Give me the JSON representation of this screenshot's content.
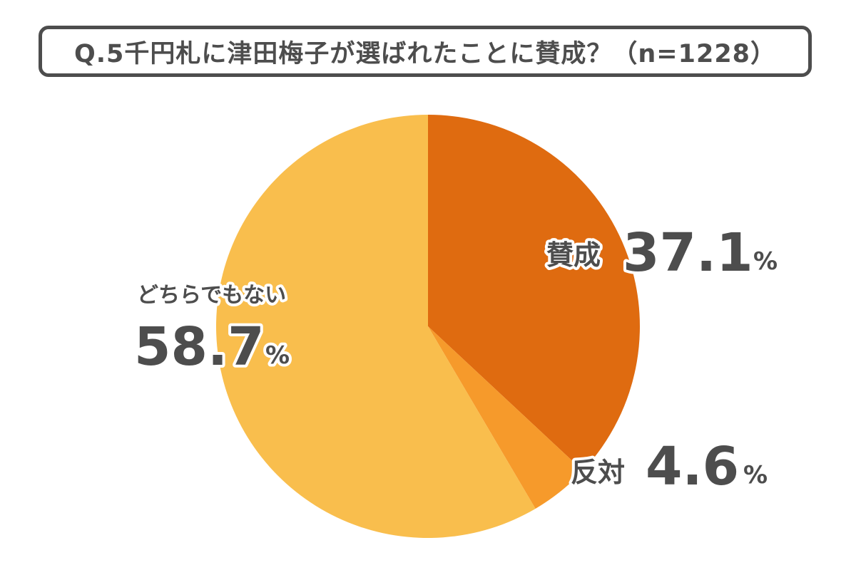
{
  "title": "Q.5千円札に津田梅子が選ばれたことに賛成？（n=1228）",
  "colors": {
    "support": "#DF6B10",
    "oppose": "#F69A2B",
    "neither": "#F9BE4D",
    "text": "#4d4d4d",
    "border": "#4d4d4d"
  },
  "chart_data": {
    "type": "pie",
    "title": "Q.5千円札に津田梅子が選ばれたことに賛成？（n=1228）",
    "slices": [
      {
        "label": "賛成",
        "value": 37.1,
        "display": "37.1",
        "unit": "%"
      },
      {
        "label": "反対",
        "value": 4.6,
        "display": "4.6",
        "unit": "%"
      },
      {
        "label": "どちらでもない",
        "value": 58.7,
        "display": "58.7",
        "unit": "%"
      }
    ],
    "start": "12 o'clock",
    "direction": "clockwise"
  }
}
